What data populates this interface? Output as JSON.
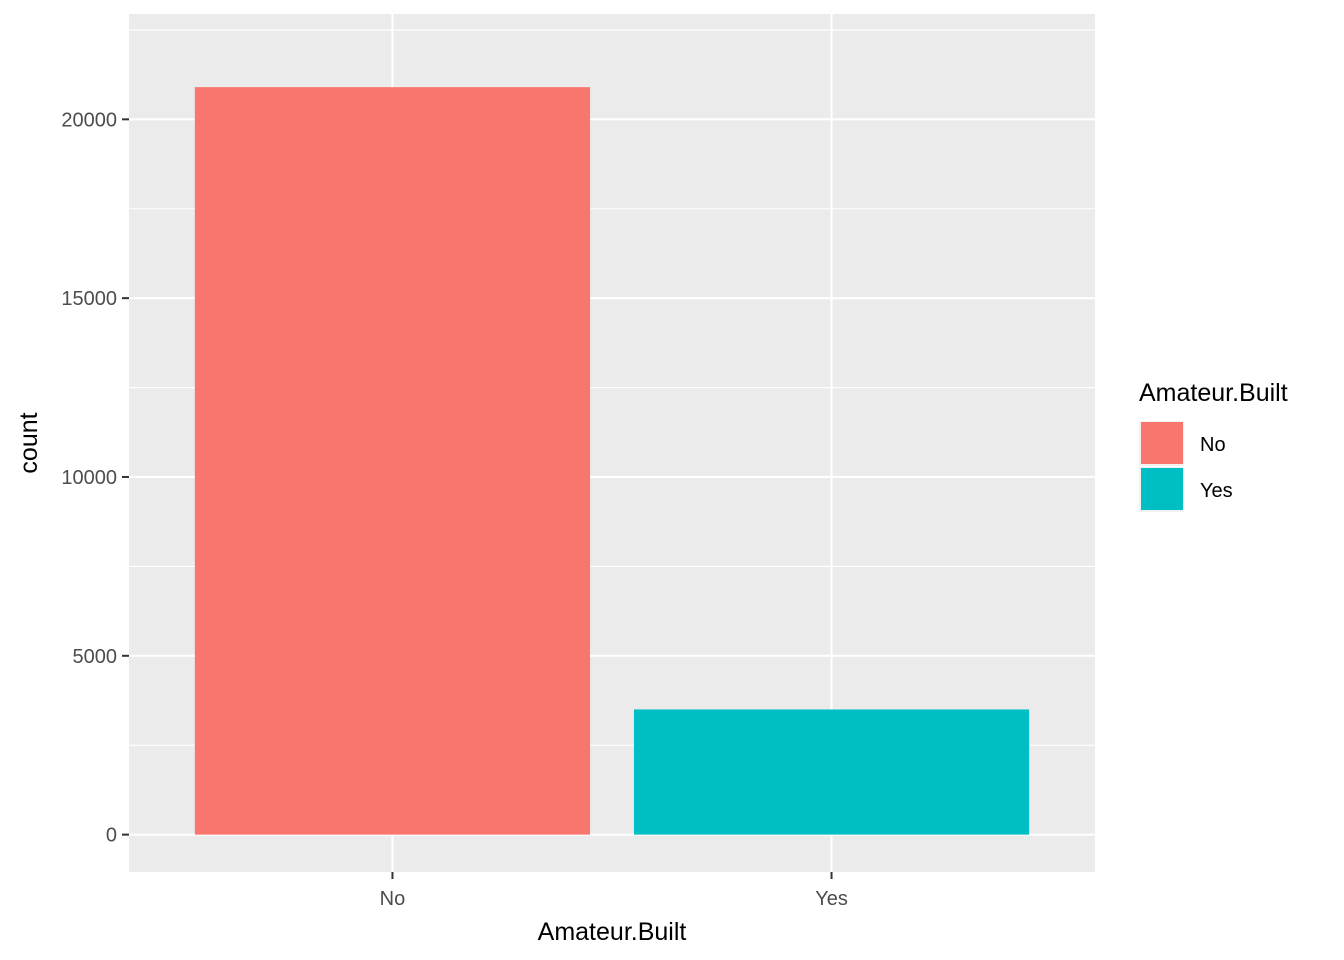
{
  "chart_data": {
    "type": "bar",
    "categories": [
      "No",
      "Yes"
    ],
    "values": [
      20900,
      3500
    ],
    "xlabel": "Amateur.Built",
    "ylabel": "count",
    "ylim": [
      -1045,
      22945
    ],
    "yticks": [
      0,
      5000,
      10000,
      15000,
      20000
    ],
    "yticks_labels": [
      "0",
      "5000",
      "10000",
      "15000",
      "20000"
    ],
    "grid": true,
    "colors": [
      "#F8766D",
      "#00BFC4"
    ],
    "panel_background": "#EBEBEB",
    "grid_color": "#FFFFFF",
    "legend": {
      "title": "Amateur.Built",
      "position": "right",
      "entries": [
        "No",
        "Yes"
      ]
    }
  }
}
